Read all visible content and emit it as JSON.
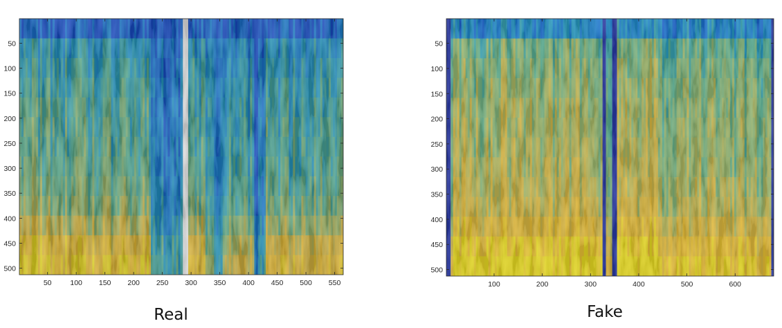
{
  "chart_data": [
    {
      "type": "heatmap",
      "caption": "Real",
      "xlim": [
        1,
        565
      ],
      "ylim": [
        1,
        513
      ],
      "y_reversed": true,
      "x_ticks": [
        "50",
        "100",
        "150",
        "200",
        "250",
        "300",
        "350",
        "400",
        "450",
        "500",
        "550"
      ],
      "y_ticks": [
        "50",
        "100",
        "150",
        "200",
        "250",
        "300",
        "350",
        "400",
        "450",
        "500"
      ],
      "colormap": [
        "#1a52d6",
        "#1e86e0",
        "#2aa6cf",
        "#5fba9a",
        "#a6c475",
        "#e2c24a",
        "#f8c93a",
        "#f7e924"
      ],
      "row_profile": [
        0.05,
        0.28,
        0.34,
        0.38,
        0.41,
        0.43,
        0.44,
        0.46,
        0.5,
        0.55,
        0.68,
        0.85,
        0.95
      ],
      "column_segments": [
        {
          "x": [
            1,
            55
          ],
          "level": 1.0
        },
        {
          "x": [
            55,
            230
          ],
          "level": 0.95
        },
        {
          "x": [
            230,
            285
          ],
          "level": 0.4
        },
        {
          "x": [
            295,
            325
          ],
          "level": 0.9
        },
        {
          "x": [
            325,
            340
          ],
          "level": 0.55
        },
        {
          "x": [
            340,
            355
          ],
          "level": 0.25
        },
        {
          "x": [
            355,
            410
          ],
          "level": 0.75
        },
        {
          "x": [
            410,
            430
          ],
          "level": 0.3
        },
        {
          "x": [
            430,
            565
          ],
          "level": 0.85
        }
      ]
    },
    {
      "type": "heatmap",
      "caption": "Fake",
      "xlim": [
        1,
        680
      ],
      "ylim": [
        1,
        513
      ],
      "y_reversed": true,
      "x_ticks": [
        "100",
        "200",
        "300",
        "400",
        "500",
        "600"
      ],
      "y_ticks": [
        "50",
        "100",
        "150",
        "200",
        "250",
        "300",
        "350",
        "400",
        "450",
        "500"
      ],
      "colormap": [
        "#1a52d6",
        "#1e86e0",
        "#2aa6cf",
        "#5fba9a",
        "#a6c475",
        "#e2c24a",
        "#f8c93a",
        "#f7e924"
      ],
      "row_profile": [
        0.2,
        0.46,
        0.5,
        0.53,
        0.56,
        0.57,
        0.58,
        0.6,
        0.63,
        0.67,
        0.76,
        0.88,
        0.97
      ],
      "column_segments": [
        {
          "x": [
            1,
            10
          ],
          "level": -1
        },
        {
          "x": [
            10,
            15
          ],
          "level": 0.85
        },
        {
          "x": [
            15,
            325
          ],
          "level": 1.05
        },
        {
          "x": [
            325,
            332
          ],
          "level": -1
        },
        {
          "x": [
            332,
            345
          ],
          "level": 0.8
        },
        {
          "x": [
            345,
            355
          ],
          "level": -1
        },
        {
          "x": [
            355,
            440
          ],
          "level": 1.1
        },
        {
          "x": [
            440,
            675
          ],
          "level": 0.95
        },
        {
          "x": [
            675,
            680
          ],
          "level": -1
        }
      ]
    }
  ]
}
